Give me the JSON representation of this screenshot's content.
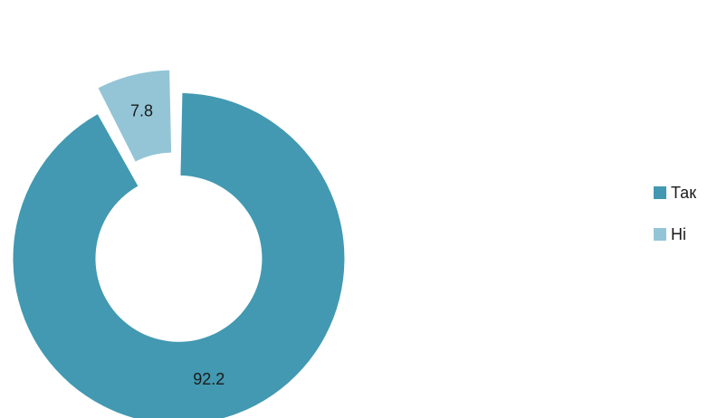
{
  "chart_data": {
    "type": "pie",
    "variant": "donut",
    "exploded": true,
    "categories": [
      "Так",
      "Ні"
    ],
    "values": [
      92.2,
      7.8
    ],
    "data_labels": [
      "92.2",
      "7.8"
    ],
    "colors": [
      "#4299b1",
      "#93c5d6"
    ],
    "legend": {
      "placement": "right",
      "entries": [
        "Так",
        "Ні"
      ]
    },
    "title": "",
    "xlabel": "",
    "ylabel": ""
  }
}
